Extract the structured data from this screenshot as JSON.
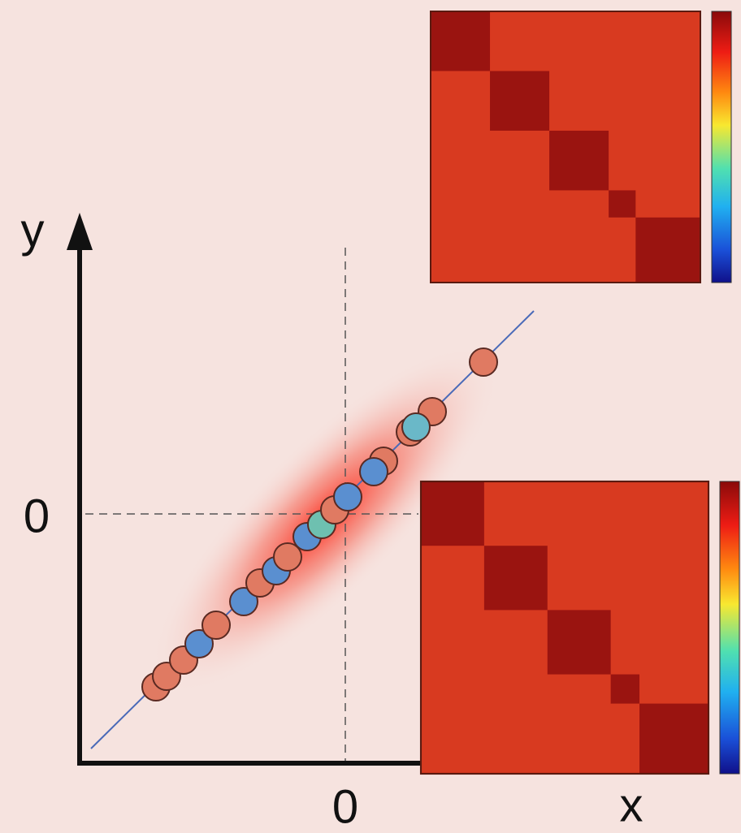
{
  "axes": {
    "y_label": "y",
    "x_label": "x",
    "y_origin_label": "0",
    "x_origin_label": "0"
  }
}
